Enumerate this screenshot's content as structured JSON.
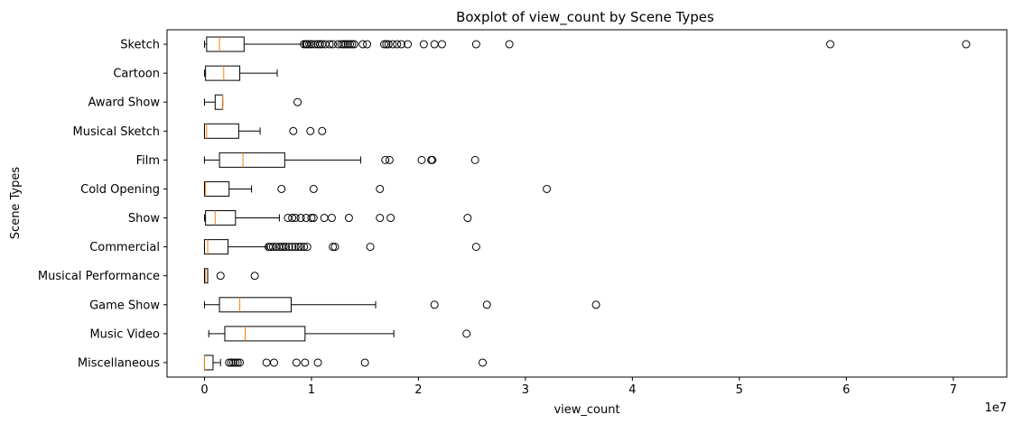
{
  "chart_data": {
    "type": "boxplot",
    "orientation": "horizontal",
    "title": "Boxplot of view_count by Scene Types",
    "xlabel": "view_count",
    "ylabel": "Scene Types",
    "x_offset_label": "1e7",
    "xlim": [
      -0.35,
      7.5
    ],
    "x_ticks": [
      0,
      1,
      2,
      3,
      4,
      5,
      6,
      7
    ],
    "x_tick_labels": [
      "0",
      "1",
      "2",
      "3",
      "4",
      "5",
      "6",
      "7"
    ],
    "grid": false,
    "colors": {
      "box": "#000000",
      "median": "#ff7f0e",
      "flier": "#000000"
    },
    "categories": [
      "Sketch",
      "Cartoon",
      "Award Show",
      "Musical Sketch",
      "Film",
      "Cold Opening",
      "Show",
      "Commercial",
      "Musical Performance",
      "Game Show",
      "Music Video",
      "Miscellaneous"
    ],
    "boxes": [
      {
        "name": "Sketch",
        "whislo": 0.0,
        "q1": 0.02,
        "med": 0.14,
        "q3": 0.37,
        "whishi": 0.92,
        "fliers": [
          0.93,
          0.95,
          0.96,
          0.98,
          1.0,
          1.03,
          1.06,
          1.08,
          1.1,
          1.13,
          1.17,
          1.2,
          1.25,
          1.28,
          1.3,
          1.32,
          1.34,
          1.36,
          1.38,
          1.4,
          1.48,
          1.52,
          1.68,
          1.7,
          1.72,
          1.76,
          1.8,
          1.84,
          1.9,
          2.05,
          2.15,
          2.22,
          2.54,
          2.85,
          5.85,
          7.12
        ]
      },
      {
        "name": "Cartoon",
        "whislo": 0.0,
        "q1": 0.01,
        "med": 0.18,
        "q3": 0.33,
        "whishi": 0.68,
        "fliers": []
      },
      {
        "name": "Award Show",
        "whislo": 0.0,
        "q1": 0.1,
        "med": 0.17,
        "q3": 0.17,
        "whishi": 0.17,
        "fliers": [
          0.87
        ]
      },
      {
        "name": "Musical Sketch",
        "whislo": 0.0,
        "q1": 0.0,
        "med": 0.02,
        "q3": 0.32,
        "whishi": 0.52,
        "fliers": [
          0.83,
          0.99,
          1.1
        ]
      },
      {
        "name": "Film",
        "whislo": 0.0,
        "q1": 0.14,
        "med": 0.36,
        "q3": 0.75,
        "whishi": 1.46,
        "fliers": [
          1.69,
          1.73,
          2.03,
          2.12,
          2.13,
          2.53
        ]
      },
      {
        "name": "Cold Opening",
        "whislo": 0.0,
        "q1": 0.0,
        "med": 0.01,
        "q3": 0.23,
        "whishi": 0.44,
        "fliers": [
          0.72,
          1.02,
          1.64,
          3.2
        ]
      },
      {
        "name": "Show",
        "whislo": 0.0,
        "q1": 0.01,
        "med": 0.1,
        "q3": 0.29,
        "whishi": 0.7,
        "fliers": [
          0.78,
          0.82,
          0.85,
          0.9,
          0.95,
          1.0,
          1.02,
          1.12,
          1.19,
          1.35,
          1.64,
          1.74,
          2.46
        ]
      },
      {
        "name": "Commercial",
        "whislo": 0.0,
        "q1": 0.0,
        "med": 0.03,
        "q3": 0.22,
        "whishi": 0.58,
        "fliers": [
          0.6,
          0.62,
          0.64,
          0.67,
          0.7,
          0.72,
          0.74,
          0.76,
          0.79,
          0.82,
          0.85,
          0.88,
          0.9,
          0.93,
          0.96,
          1.2,
          1.22,
          1.55,
          2.54
        ]
      },
      {
        "name": "Musical Performance",
        "whislo": 0.0,
        "q1": 0.0,
        "med": 0.01,
        "q3": 0.03,
        "whishi": 0.03,
        "fliers": [
          0.15,
          0.47
        ]
      },
      {
        "name": "Game Show",
        "whislo": 0.0,
        "q1": 0.14,
        "med": 0.33,
        "q3": 0.81,
        "whishi": 1.6,
        "fliers": [
          2.15,
          2.64,
          3.66
        ]
      },
      {
        "name": "Music Video",
        "whislo": 0.04,
        "q1": 0.19,
        "med": 0.38,
        "q3": 0.94,
        "whishi": 1.77,
        "fliers": [
          2.45
        ]
      },
      {
        "name": "Miscellaneous",
        "whislo": 0.0,
        "q1": 0.0,
        "med": 0.0,
        "q3": 0.08,
        "whishi": 0.15,
        "fliers": [
          0.23,
          0.25,
          0.27,
          0.29,
          0.31,
          0.33,
          0.58,
          0.65,
          0.86,
          0.94,
          1.06,
          1.5,
          2.6
        ]
      }
    ]
  }
}
